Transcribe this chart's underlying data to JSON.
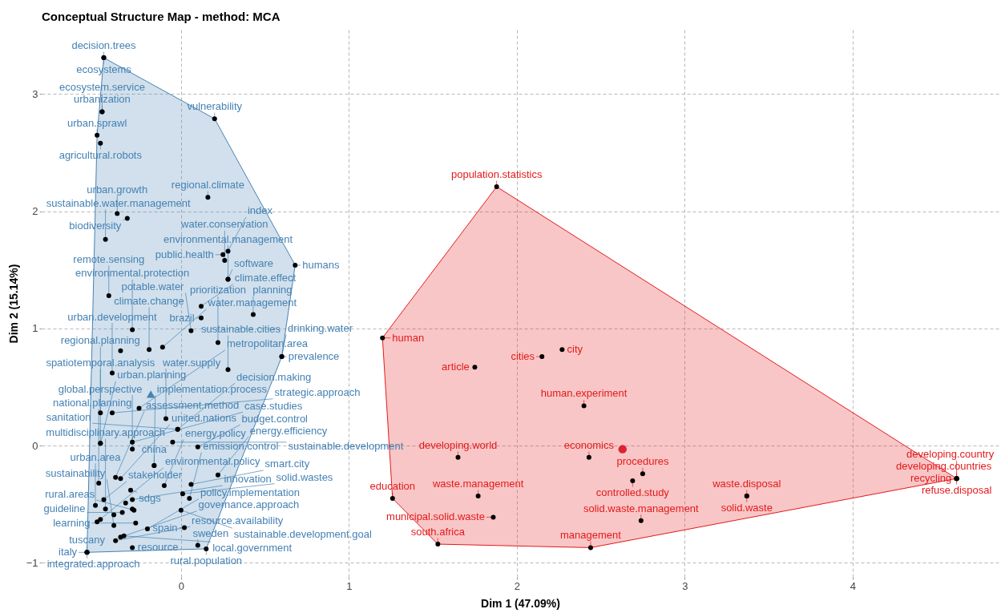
{
  "chart_data": {
    "type": "scatter",
    "title": "Conceptual Structure Map - method: MCA",
    "xlabel": "Dim 1 (47.09%)",
    "ylabel": "Dim 2 (15.14%)",
    "xlim": [
      -0.83,
      4.87
    ],
    "ylim": [
      -1.12,
      3.55
    ],
    "xticks": [
      0,
      1,
      2,
      3,
      4
    ],
    "yticks": [
      -1,
      0,
      1,
      2,
      3
    ],
    "grid": true,
    "series": [
      {
        "type": "area",
        "color": "#4682b4",
        "x": [
          -0.46,
          0.2,
          0.68,
          0.6,
          0.15,
          -0.56,
          -0.5,
          -0.46
        ],
        "values": [
          3.31,
          2.79,
          1.54,
          0.76,
          -0.88,
          -0.91,
          2.65,
          3.31
        ]
      },
      {
        "type": "area",
        "color": "#e41a1c",
        "x": [
          1.88,
          4.62,
          2.44,
          1.53,
          1.26,
          1.2,
          1.88
        ],
        "values": [
          2.21,
          -0.28,
          -0.87,
          -0.84,
          -0.45,
          0.92,
          2.21
        ]
      },
      {
        "marker": "circle",
        "color": "#000000",
        "x": [
          -0.46,
          -0.46,
          -0.47,
          -0.47,
          0.2,
          -0.5,
          -0.48,
          0.16,
          -0.38,
          -0.32,
          -0.45,
          0.28,
          0.25,
          0.26,
          0.68,
          0.28,
          0.28,
          -0.43,
          0.12,
          0.12,
          0.43,
          -0.29,
          0.06,
          0.22,
          -0.36,
          -0.19,
          -0.11,
          0.6,
          0.6,
          -0.41,
          0.28,
          -0.25,
          -0.48,
          -0.41,
          -0.09,
          -0.02,
          -0.02,
          -0.48,
          -0.48,
          -0.29,
          -0.05,
          -0.29,
          0.1,
          -0.16,
          -0.16,
          0.22,
          -0.49,
          -0.39,
          -0.36,
          -0.1,
          0.06,
          -0.3,
          0.01,
          0.05,
          -0.46,
          -0.29,
          -0.51,
          -0.33,
          -0.45,
          -0.29,
          -0.28,
          0.0,
          -0.4,
          -0.35,
          -0.48,
          -0.5,
          -0.27,
          -0.4,
          -0.2,
          0.02,
          -0.34,
          -0.36,
          -0.39,
          -0.29,
          0.1,
          0.15,
          -0.56,
          -0.56,
          -0.56
        ],
        "values": [
          3.31,
          3.31,
          2.85,
          2.85,
          2.79,
          2.65,
          2.58,
          2.12,
          1.98,
          1.94,
          1.76,
          1.66,
          1.63,
          1.58,
          1.54,
          1.42,
          1.42,
          1.28,
          1.19,
          1.09,
          1.12,
          0.99,
          0.98,
          0.88,
          0.81,
          0.82,
          0.84,
          0.76,
          0.76,
          0.62,
          0.65,
          0.32,
          0.28,
          0.28,
          0.23,
          0.14,
          0.14,
          0.02,
          0.02,
          0.03,
          0.03,
          -0.03,
          -0.01,
          -0.17,
          -0.17,
          -0.25,
          -0.32,
          -0.27,
          -0.28,
          -0.34,
          -0.33,
          -0.38,
          -0.41,
          -0.45,
          -0.46,
          -0.46,
          -0.51,
          -0.49,
          -0.54,
          -0.54,
          -0.55,
          -0.55,
          -0.59,
          -0.57,
          -0.63,
          -0.65,
          -0.66,
          -0.68,
          -0.71,
          -0.7,
          -0.77,
          -0.78,
          -0.81,
          -0.87,
          -0.85,
          -0.88,
          -0.91,
          -0.91,
          -0.91
        ],
        "value_labels": [
          "decision.trees",
          "ecosystems",
          "urbanization",
          "ecosystem.service",
          "vulnerability",
          "urban.sprawl",
          "agricultural.robots",
          "regional.climate",
          "urban.growth",
          "biodiversity",
          "sustainable.water.management",
          "index",
          "public.health",
          "water.conservation",
          "humans",
          "software",
          "environmental.management",
          "remote.sensing",
          "climate.effect",
          "brazil",
          "planning",
          "environmental.protection",
          "potable.water",
          "prioritization",
          null,
          "climate.change",
          "water.management",
          "prevalence",
          "drinking.water",
          "urban.development",
          "sustainable.cities",
          "metropolitan.area",
          "regional.planning",
          "strategic.approach",
          "water.supply",
          "sanitation",
          "decision.making",
          "spatiotemporal.analysis",
          "urban.planning",
          "case.studies",
          "sustainable.development",
          "global.perspective",
          "budget.control",
          "implementation.process",
          "china",
          "energy.efficiency",
          "national.planning",
          "assessment.method",
          "united.nations",
          "energy.policy",
          "smart.city",
          "sdgs",
          "solid.wastes",
          "emission.control",
          "stakeholder",
          "innovation",
          "urban.area",
          null,
          "multidisciplinary.approach",
          null,
          "rural.areas",
          "sustainable.development.goal",
          null,
          "guideline",
          null,
          "environmental.policy",
          "learning",
          "sustainability",
          "policy.implementation",
          "spain",
          "local.government",
          "governance.approach",
          "resource.availability",
          "resource",
          "sweden",
          "rural.population",
          "integrated.approach",
          "italy",
          "tuscany"
        ]
      },
      {
        "marker": "circle",
        "color": "#000000",
        "x": [
          1.88,
          1.2,
          1.75,
          2.15,
          2.27,
          2.4,
          1.65,
          2.43,
          1.77,
          1.26,
          1.86,
          1.53,
          2.44,
          2.75,
          2.69,
          3.37,
          3.37,
          2.74,
          4.62,
          4.62,
          4.62,
          4.62
        ],
        "values": [
          2.21,
          0.92,
          0.67,
          0.76,
          0.82,
          0.34,
          -0.1,
          -0.1,
          -0.43,
          -0.45,
          -0.61,
          -0.84,
          -0.87,
          -0.24,
          -0.3,
          -0.43,
          -0.43,
          -0.64,
          -0.28,
          -0.28,
          -0.28,
          -0.28
        ],
        "value_labels": [
          "population.statistics",
          "human",
          "article",
          "cities",
          "city",
          "human.experiment",
          "developing.world",
          "economics",
          "waste.management",
          "education",
          "municipal.solid.waste",
          "south.africa",
          "management",
          "procedures",
          "controlled.study",
          "waste.disposal",
          "solid.waste",
          "solid.waste.management",
          "recycling",
          "developing.countries",
          "refuse.disposal",
          "developing.country"
        ]
      },
      {
        "marker": "triangle",
        "color": "#4682b4",
        "x": [
          -0.18
        ],
        "values": [
          0.44
        ]
      },
      {
        "marker": "circle",
        "color": "#dc2430",
        "x": [
          2.63
        ],
        "values": [
          -0.03
        ]
      }
    ]
  }
}
